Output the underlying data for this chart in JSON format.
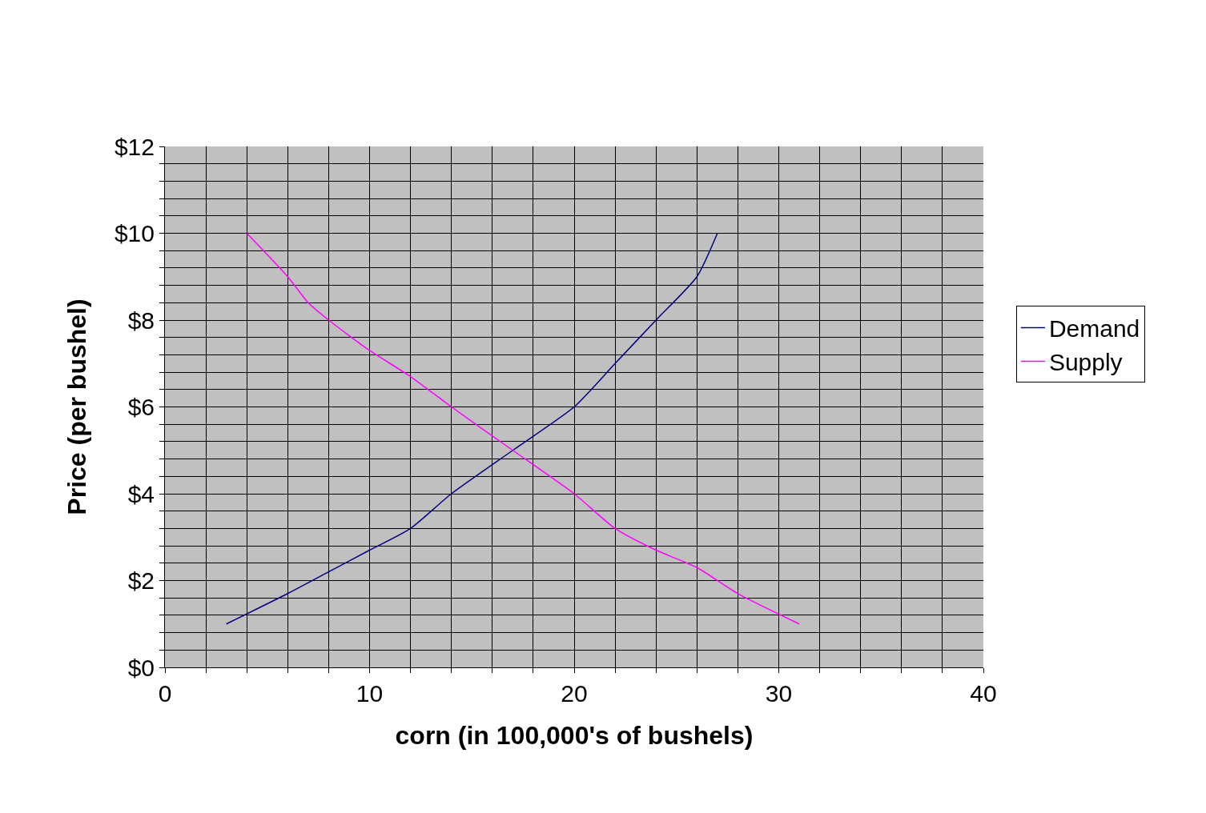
{
  "chart_data": {
    "type": "line",
    "xlabel": "corn (in 100,000's of bushels)",
    "ylabel": "Price (per bushel)",
    "series": [
      {
        "name": "Demand",
        "color": "#000080",
        "x": [
          3,
          6,
          8,
          10,
          12,
          14,
          17,
          20,
          22,
          24,
          26,
          27
        ],
        "values": [
          1,
          1.7,
          2.2,
          2.7,
          3.2,
          4,
          5,
          6,
          7,
          8,
          9,
          10
        ]
      },
      {
        "name": "Supply",
        "color": "#ff00ff",
        "x": [
          4,
          6,
          7,
          8,
          10,
          12,
          14,
          17,
          20,
          22,
          24,
          26,
          28,
          31
        ],
        "values": [
          10,
          9,
          8.4,
          8,
          7.3,
          6.7,
          6,
          5,
          4,
          3.2,
          2.7,
          2.3,
          1.7,
          1
        ]
      }
    ],
    "xlim": [
      0,
      40
    ],
    "xticks": [
      0,
      {
        "value": 2,
        "label": null
      },
      {
        "value": 4,
        "label": null
      },
      {
        "value": 6,
        "label": null
      },
      {
        "value": 8,
        "label": null
      },
      10,
      {
        "value": 12,
        "label": null
      },
      {
        "value": 14,
        "label": null
      },
      {
        "value": 16,
        "label": null
      },
      {
        "value": 18,
        "label": null
      },
      20,
      {
        "value": 22,
        "label": null
      },
      {
        "value": 24,
        "label": null
      },
      {
        "value": 26,
        "label": null
      },
      {
        "value": 28,
        "label": null
      },
      30,
      {
        "value": 32,
        "label": null
      },
      {
        "value": 34,
        "label": null
      },
      {
        "value": 36,
        "label": null
      },
      {
        "value": 38,
        "label": null
      },
      40
    ],
    "ylim": [
      0,
      12
    ],
    "yticks": [
      {
        "value": 0,
        "label": "$0"
      },
      {
        "value": 0.4,
        "label": null
      },
      {
        "value": 0.8,
        "label": null
      },
      {
        "value": 1.2,
        "label": null
      },
      {
        "value": 1.6,
        "label": null
      },
      {
        "value": 2,
        "label": "$2"
      },
      {
        "value": 2.4,
        "label": null
      },
      {
        "value": 2.8,
        "label": null
      },
      {
        "value": 3.2,
        "label": null
      },
      {
        "value": 3.6,
        "label": null
      },
      {
        "value": 4,
        "label": "$4"
      },
      {
        "value": 4.4,
        "label": null
      },
      {
        "value": 4.8,
        "label": null
      },
      {
        "value": 5.2,
        "label": null
      },
      {
        "value": 5.6,
        "label": null
      },
      {
        "value": 6,
        "label": "$6"
      },
      {
        "value": 6.4,
        "label": null
      },
      {
        "value": 6.8,
        "label": null
      },
      {
        "value": 7.2,
        "label": null
      },
      {
        "value": 7.6,
        "label": null
      },
      {
        "value": 8,
        "label": "$8"
      },
      {
        "value": 8.4,
        "label": null
      },
      {
        "value": 8.8,
        "label": null
      },
      {
        "value": 9.2,
        "label": null
      },
      {
        "value": 9.6,
        "label": null
      },
      {
        "value": 10,
        "label": "$10"
      },
      {
        "value": 10.4,
        "label": null
      },
      {
        "value": 10.8,
        "label": null
      },
      {
        "value": 11.2,
        "label": null
      },
      {
        "value": 11.6,
        "label": null
      },
      {
        "value": 12,
        "label": "$12"
      }
    ],
    "grid": true,
    "legend": "right",
    "marker": "none",
    "line_style": "solid"
  }
}
